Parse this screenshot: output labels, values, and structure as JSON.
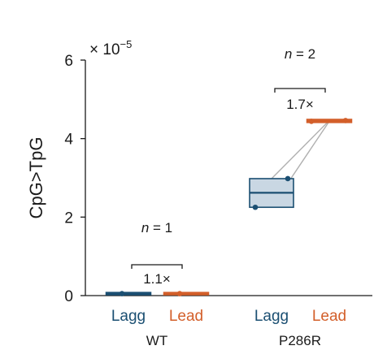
{
  "chart_data": {
    "type": "box",
    "ylabel": "CpG>TpG",
    "y_multiplier": "× 10",
    "y_multiplier_exp": "−5",
    "ylim": [
      0,
      6
    ],
    "yticks": [
      0,
      2,
      4,
      6
    ],
    "ytick_labels": [
      "0",
      "2",
      "4",
      "6"
    ],
    "colors": {
      "Lagg": "#1b4f72",
      "Lead": "#d35f2a",
      "box_fill": "#c9d7e3",
      "pair_line": "#b0b0b0"
    },
    "groups": [
      {
        "name": "WT",
        "categories": [
          "Lagg",
          "Lead"
        ],
        "n_text": "= 1",
        "fold_change": "1.1×",
        "Lagg": {
          "values": [
            0.05
          ],
          "q1": 0.03,
          "median": 0.05,
          "q3": 0.07
        },
        "Lead": {
          "values": [
            0.05
          ],
          "q1": 0.03,
          "median": 0.05,
          "q3": 0.07
        },
        "pairs": []
      },
      {
        "name": "P286R",
        "categories": [
          "Lagg",
          "Lead"
        ],
        "n_text": "= 2",
        "fold_change": "1.7×",
        "Lagg": {
          "values": [
            2.25,
            2.98
          ],
          "q1": 2.25,
          "median": 2.62,
          "q3": 2.98
        },
        "Lead": {
          "values": [
            4.44,
            4.46
          ],
          "q1": 4.42,
          "median": 4.45,
          "q3": 4.48
        },
        "pairs": [
          [
            2.25,
            4.44
          ],
          [
            2.98,
            4.46
          ]
        ]
      }
    ]
  }
}
